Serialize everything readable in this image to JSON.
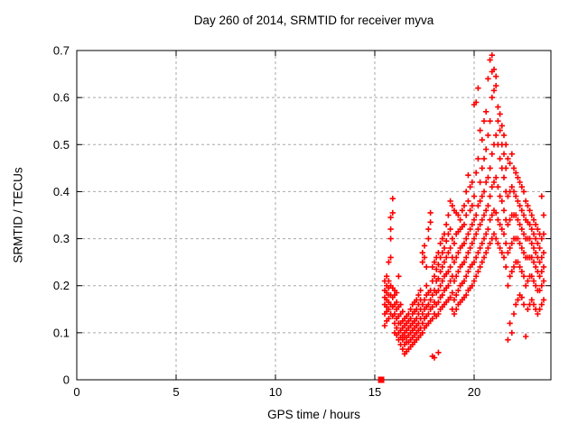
{
  "title": "Day 260 of 2014, SRMTID for receiver myva",
  "colors": {
    "marker": "#ff0000",
    "frame": "#000000",
    "grid": "#a8a8a8",
    "background": "#ffffff"
  },
  "chart_data": {
    "type": "scatter",
    "title": "Day 260 of 2014, SRMTID for receiver myva",
    "xlabel": "GPS time / hours",
    "ylabel": "SRMTID / TECUs",
    "xlim": [
      0,
      23.864
    ],
    "ylim": [
      0,
      0.7
    ],
    "xticks": [
      0,
      5,
      10,
      15,
      20
    ],
    "xtick_labels": [
      "0",
      "5",
      "10",
      "15",
      "20"
    ],
    "yticks": [
      0,
      0.1,
      0.2,
      0.3,
      0.4,
      0.5,
      0.6,
      0.7
    ],
    "ytick_labels": [
      "0",
      "0.1",
      "0.2",
      "0.3",
      "0.4",
      "0.5",
      "0.6",
      "0.7"
    ],
    "grid": "dashed",
    "legend": "none",
    "series": [
      {
        "name": "srmtid-points",
        "marker": "plus",
        "color": "#ff0000",
        "columns": [
          [
            15.5,
            [
              0.115,
              0.14,
              0.16,
              0.175,
              0.19,
              0.21
            ]
          ],
          [
            15.6,
            [
              0.125,
              0.145,
              0.155,
              0.17,
              0.185,
              0.2,
              0.22
            ]
          ],
          [
            15.7,
            [
              0.13,
              0.15,
              0.165,
              0.18,
              0.195,
              0.21,
              0.25
            ]
          ],
          [
            15.8,
            [
              0.14,
              0.16,
              0.18,
              0.2,
              0.26,
              0.3,
              0.32,
              0.345
            ]
          ],
          [
            15.9,
            [
              0.135,
              0.155,
              0.175,
              0.195,
              0.355,
              0.385
            ]
          ],
          [
            16.0,
            [
              0.1,
              0.12,
              0.14,
              0.16,
              0.18,
              0.19
            ]
          ],
          [
            16.1,
            [
              0.095,
              0.11,
              0.13,
              0.15,
              0.165,
              0.185
            ]
          ],
          [
            16.2,
            [
              0.085,
              0.1,
              0.12,
              0.135,
              0.155,
              0.22
            ]
          ],
          [
            16.3,
            [
              0.075,
              0.09,
              0.105,
              0.12,
              0.14,
              0.16
            ]
          ],
          [
            16.4,
            [
              0.065,
              0.085,
              0.095,
              0.11,
              0.125,
              0.145
            ]
          ],
          [
            16.5,
            [
              0.055,
              0.075,
              0.09,
              0.1,
              0.115,
              0.13
            ]
          ],
          [
            16.6,
            [
              0.06,
              0.08,
              0.09,
              0.105,
              0.12,
              0.135
            ]
          ],
          [
            16.7,
            [
              0.065,
              0.08,
              0.095,
              0.11,
              0.125,
              0.14
            ]
          ],
          [
            16.8,
            [
              0.07,
              0.085,
              0.1,
              0.115,
              0.13,
              0.15
            ]
          ],
          [
            16.9,
            [
              0.075,
              0.09,
              0.105,
              0.12,
              0.14,
              0.16
            ]
          ],
          [
            17.0,
            [
              0.08,
              0.095,
              0.11,
              0.125,
              0.145,
              0.165
            ]
          ],
          [
            17.1,
            [
              0.085,
              0.1,
              0.115,
              0.13,
              0.15,
              0.17
            ]
          ],
          [
            17.2,
            [
              0.09,
              0.105,
              0.12,
              0.14,
              0.16,
              0.18
            ]
          ],
          [
            17.3,
            [
              0.095,
              0.11,
              0.13,
              0.15,
              0.17,
              0.19
            ]
          ],
          [
            17.4,
            [
              0.1,
              0.12,
              0.14,
              0.16,
              0.25,
              0.27
            ]
          ],
          [
            17.5,
            [
              0.11,
              0.13,
              0.15,
              0.17,
              0.26,
              0.285
            ]
          ],
          [
            17.6,
            [
              0.115,
              0.135,
              0.155,
              0.18,
              0.2,
              0.24
            ]
          ],
          [
            17.7,
            [
              0.12,
              0.14,
              0.16,
              0.185,
              0.3,
              0.32
            ]
          ],
          [
            17.8,
            [
              0.125,
              0.15,
              0.17,
              0.19,
              0.335,
              0.355
            ]
          ],
          [
            17.9,
            [
              0.05,
              0.13,
              0.155,
              0.18,
              0.21,
              0.24
            ]
          ],
          [
            18.0,
            [
              0.047,
              0.14,
              0.165,
              0.19,
              0.22,
              0.25
            ]
          ],
          [
            18.1,
            [
              0.135,
              0.16,
              0.185,
              0.21,
              0.235,
              0.26
            ]
          ],
          [
            18.2,
            [
              0.058,
              0.14,
              0.165,
              0.19,
              0.215,
              0.245,
              0.27
            ]
          ],
          [
            18.3,
            [
              0.15,
              0.175,
              0.2,
              0.23,
              0.26,
              0.29
            ]
          ],
          [
            18.4,
            [
              0.155,
              0.18,
              0.21,
              0.24,
              0.27,
              0.3
            ]
          ],
          [
            18.5,
            [
              0.16,
              0.19,
              0.22,
              0.25,
              0.28,
              0.31
            ]
          ],
          [
            18.6,
            [
              0.165,
              0.195,
              0.225,
              0.26,
              0.295,
              0.33
            ]
          ],
          [
            18.7,
            [
              0.17,
              0.2,
              0.23,
              0.27,
              0.31,
              0.35
            ]
          ],
          [
            18.8,
            [
              0.175,
              0.21,
              0.24,
              0.28,
              0.32,
              0.38
            ]
          ],
          [
            18.9,
            [
              0.15,
              0.185,
              0.22,
              0.26,
              0.3,
              0.37
            ]
          ],
          [
            19.0,
            [
              0.14,
              0.17,
              0.21,
              0.25,
              0.29,
              0.36
            ]
          ],
          [
            19.1,
            [
              0.15,
              0.18,
              0.22,
              0.26,
              0.31,
              0.355
            ]
          ],
          [
            19.2,
            [
              0.16,
              0.19,
              0.23,
              0.27,
              0.315,
              0.35
            ]
          ],
          [
            19.3,
            [
              0.165,
              0.2,
              0.24,
              0.28,
              0.32,
              0.34
            ]
          ],
          [
            19.4,
            [
              0.17,
              0.205,
              0.245,
              0.285,
              0.325,
              0.36
            ]
          ],
          [
            19.5,
            [
              0.175,
              0.21,
              0.25,
              0.29,
              0.33,
              0.37
            ]
          ],
          [
            19.6,
            [
              0.18,
              0.22,
              0.26,
              0.3,
              0.35,
              0.4
            ]
          ],
          [
            19.7,
            [
              0.19,
              0.23,
              0.27,
              0.31,
              0.38,
              0.435
            ]
          ],
          [
            19.8,
            [
              0.195,
              0.24,
              0.28,
              0.32,
              0.36,
              0.41
            ]
          ],
          [
            19.9,
            [
              0.2,
              0.245,
              0.29,
              0.33,
              0.37,
              0.42
            ]
          ],
          [
            20.0,
            [
              0.21,
              0.25,
              0.3,
              0.34,
              0.39,
              0.585
            ]
          ],
          [
            20.1,
            [
              0.22,
              0.26,
              0.31,
              0.35,
              0.44,
              0.59
            ]
          ],
          [
            20.2,
            [
              0.23,
              0.27,
              0.32,
              0.37,
              0.47,
              0.62
            ]
          ],
          [
            20.3,
            [
              0.24,
              0.28,
              0.33,
              0.38,
              0.42,
              0.53
            ]
          ],
          [
            20.4,
            [
              0.25,
              0.29,
              0.34,
              0.39,
              0.45,
              0.51
            ]
          ],
          [
            20.5,
            [
              0.26,
              0.3,
              0.35,
              0.4,
              0.47,
              0.55
            ]
          ],
          [
            20.6,
            [
              0.27,
              0.31,
              0.36,
              0.42,
              0.49,
              0.57
            ]
          ],
          [
            20.7,
            [
              0.28,
              0.32,
              0.37,
              0.43,
              0.52,
              0.64
            ]
          ],
          [
            20.8,
            [
              0.29,
              0.34,
              0.39,
              0.45,
              0.55,
              0.68
            ]
          ],
          [
            20.9,
            [
              0.3,
              0.35,
              0.41,
              0.48,
              0.6,
              0.655,
              0.69
            ]
          ],
          [
            21.0,
            [
              0.31,
              0.36,
              0.42,
              0.5,
              0.615,
              0.66
            ]
          ],
          [
            21.1,
            [
              0.3,
              0.355,
              0.43,
              0.52,
              0.625,
              0.645
            ]
          ],
          [
            21.2,
            [
              0.29,
              0.34,
              0.41,
              0.5,
              0.55,
              0.58
            ]
          ],
          [
            21.3,
            [
              0.28,
              0.33,
              0.39,
              0.47,
              0.53,
              0.565
            ]
          ],
          [
            21.4,
            [
              0.27,
              0.32,
              0.38,
              0.45,
              0.5,
              0.54
            ]
          ],
          [
            21.5,
            [
              0.26,
              0.31,
              0.36,
              0.43,
              0.48,
              0.52
            ]
          ],
          [
            21.6,
            [
              0.24,
              0.29,
              0.34,
              0.4,
              0.45,
              0.5
            ]
          ],
          [
            21.7,
            [
              0.085,
              0.2,
              0.27,
              0.33,
              0.39,
              0.47
            ]
          ],
          [
            21.8,
            [
              0.12,
              0.22,
              0.28,
              0.34,
              0.4,
              0.46
            ]
          ],
          [
            21.9,
            [
              0.1,
              0.23,
              0.29,
              0.35,
              0.41,
              0.48
            ]
          ],
          [
            22.0,
            [
              0.14,
              0.24,
              0.3,
              0.35,
              0.4,
              0.45
            ]
          ],
          [
            22.1,
            [
              0.16,
              0.25,
              0.3,
              0.35,
              0.39,
              0.44
            ]
          ],
          [
            22.2,
            [
              0.17,
              0.25,
              0.3,
              0.34,
              0.38,
              0.43
            ]
          ],
          [
            22.3,
            [
              0.18,
              0.24,
              0.29,
              0.33,
              0.37,
              0.42
            ]
          ],
          [
            22.4,
            [
              0.175,
              0.23,
              0.28,
              0.32,
              0.36,
              0.41
            ]
          ],
          [
            22.5,
            [
              0.16,
              0.22,
              0.27,
              0.31,
              0.35,
              0.4
            ]
          ],
          [
            22.6,
            [
              0.092,
              0.2,
              0.26,
              0.3,
              0.34,
              0.38
            ]
          ],
          [
            22.7,
            [
              0.15,
              0.21,
              0.26,
              0.3,
              0.335,
              0.37
            ]
          ],
          [
            22.8,
            [
              0.16,
              0.22,
              0.26,
              0.3,
              0.33,
              0.36
            ]
          ],
          [
            22.9,
            [
              0.17,
              0.22,
              0.26,
              0.29,
              0.32,
              0.35
            ]
          ],
          [
            23.0,
            [
              0.16,
              0.21,
              0.25,
              0.28,
              0.31,
              0.34
            ]
          ],
          [
            23.1,
            [
              0.15,
              0.2,
              0.24,
              0.27,
              0.3,
              0.33
            ]
          ],
          [
            23.2,
            [
              0.14,
              0.19,
              0.23,
              0.26,
              0.29,
              0.32
            ]
          ],
          [
            23.3,
            [
              0.15,
              0.19,
              0.22,
              0.25,
              0.28,
              0.31
            ]
          ],
          [
            23.4,
            [
              0.16,
              0.2,
              0.23,
              0.26,
              0.3,
              0.39
            ]
          ],
          [
            23.5,
            [
              0.17,
              0.21,
              0.24,
              0.27,
              0.31,
              0.35
            ]
          ]
        ]
      },
      {
        "name": "start-marker",
        "marker": "filled-square",
        "color": "#ff0000",
        "points": [
          [
            15.32,
            0
          ]
        ]
      }
    ]
  }
}
